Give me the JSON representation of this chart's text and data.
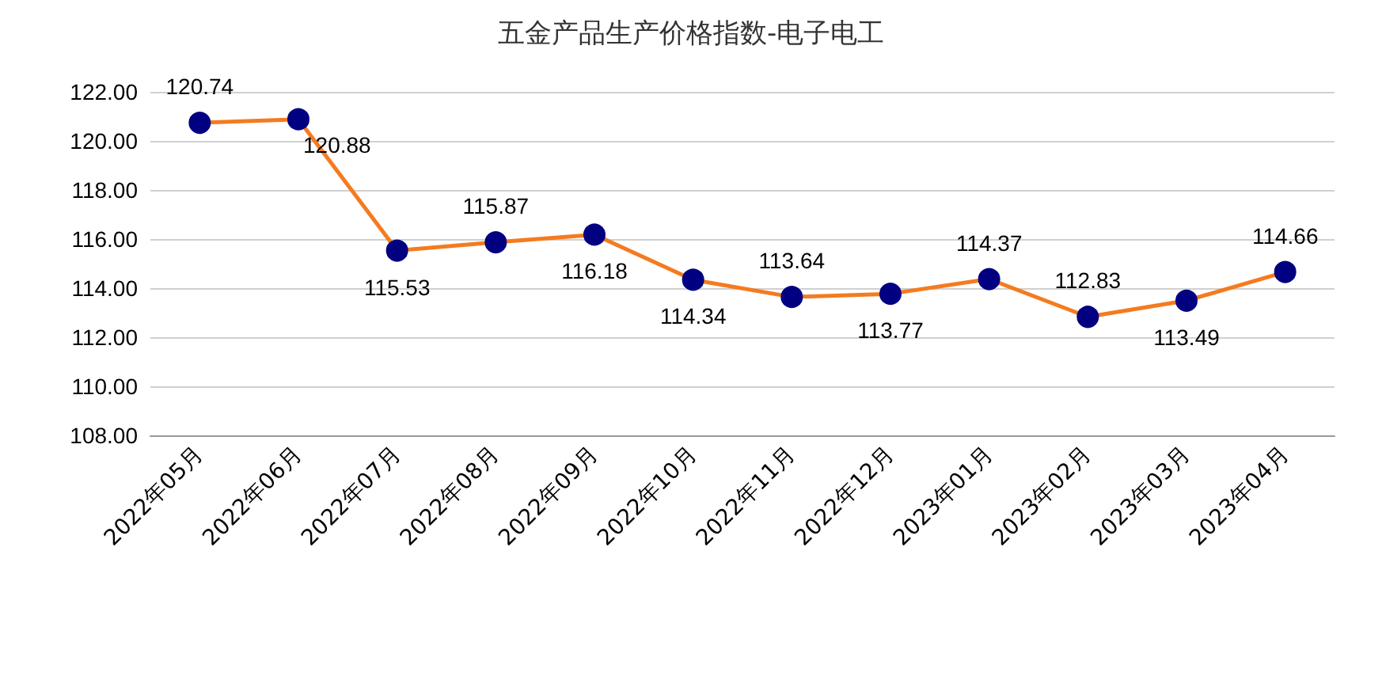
{
  "chart_data": {
    "type": "line",
    "title": "五金产品生产价格指数-电子电工",
    "categories": [
      "2022年05月",
      "2022年06月",
      "2022年07月",
      "2022年08月",
      "2022年09月",
      "2022年10月",
      "2022年11月",
      "2022年12月",
      "2023年01月",
      "2023年02月",
      "2023年03月",
      "2023年04月"
    ],
    "series": [
      {
        "color": "#f47b20",
        "values": [
          120.74,
          120.88,
          115.53,
          115.87,
          116.18,
          114.34,
          113.64,
          113.77,
          114.37,
          112.83,
          113.49,
          114.66
        ]
      }
    ],
    "ylim": [
      108,
      122
    ],
    "yticks": [
      {
        "value": 108,
        "label": "108.00"
      },
      {
        "value": 110,
        "label": "110.00"
      },
      {
        "value": 112,
        "label": "112.00"
      },
      {
        "value": 114,
        "label": "114.00"
      },
      {
        "value": 116,
        "label": "116.00"
      },
      {
        "value": 118,
        "label": "118.00"
      },
      {
        "value": 120,
        "label": "120.00"
      },
      {
        "value": 122,
        "label": "122.00"
      }
    ],
    "grid": "y",
    "marker": "circle",
    "line_style": "solid",
    "data_labels": true
  }
}
